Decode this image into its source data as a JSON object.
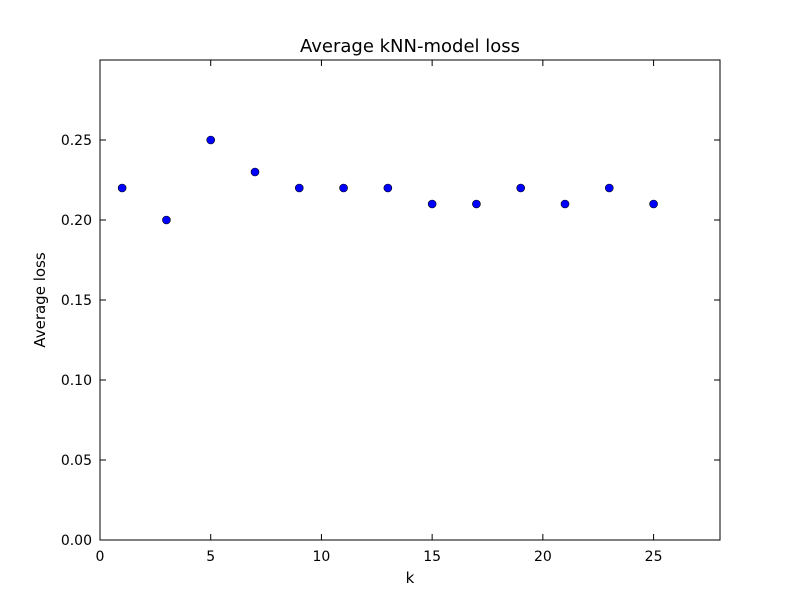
{
  "chart_data": {
    "type": "scatter",
    "title": "Average kNN-model loss",
    "xlabel": "k",
    "ylabel": "Average loss",
    "xlim": [
      0,
      28
    ],
    "ylim": [
      0,
      0.3
    ],
    "xticks": [
      0,
      5,
      10,
      15,
      20,
      25
    ],
    "xtick_labels": [
      "0",
      "5",
      "10",
      "15",
      "20",
      "25"
    ],
    "yticks": [
      0.0,
      0.05,
      0.1,
      0.15,
      0.2,
      0.25
    ],
    "ytick_labels": [
      "0.00",
      "0.05",
      "0.10",
      "0.15",
      "0.20",
      "0.25"
    ],
    "grid": false,
    "series": [
      {
        "color": "#0000ff",
        "x": [
          1,
          3,
          5,
          7,
          9,
          11,
          13,
          15,
          17,
          19,
          21,
          23,
          25
        ],
        "y": [
          0.22,
          0.2,
          0.25,
          0.23,
          0.22,
          0.22,
          0.22,
          0.21,
          0.21,
          0.22,
          0.21,
          0.22,
          0.21
        ]
      }
    ]
  }
}
